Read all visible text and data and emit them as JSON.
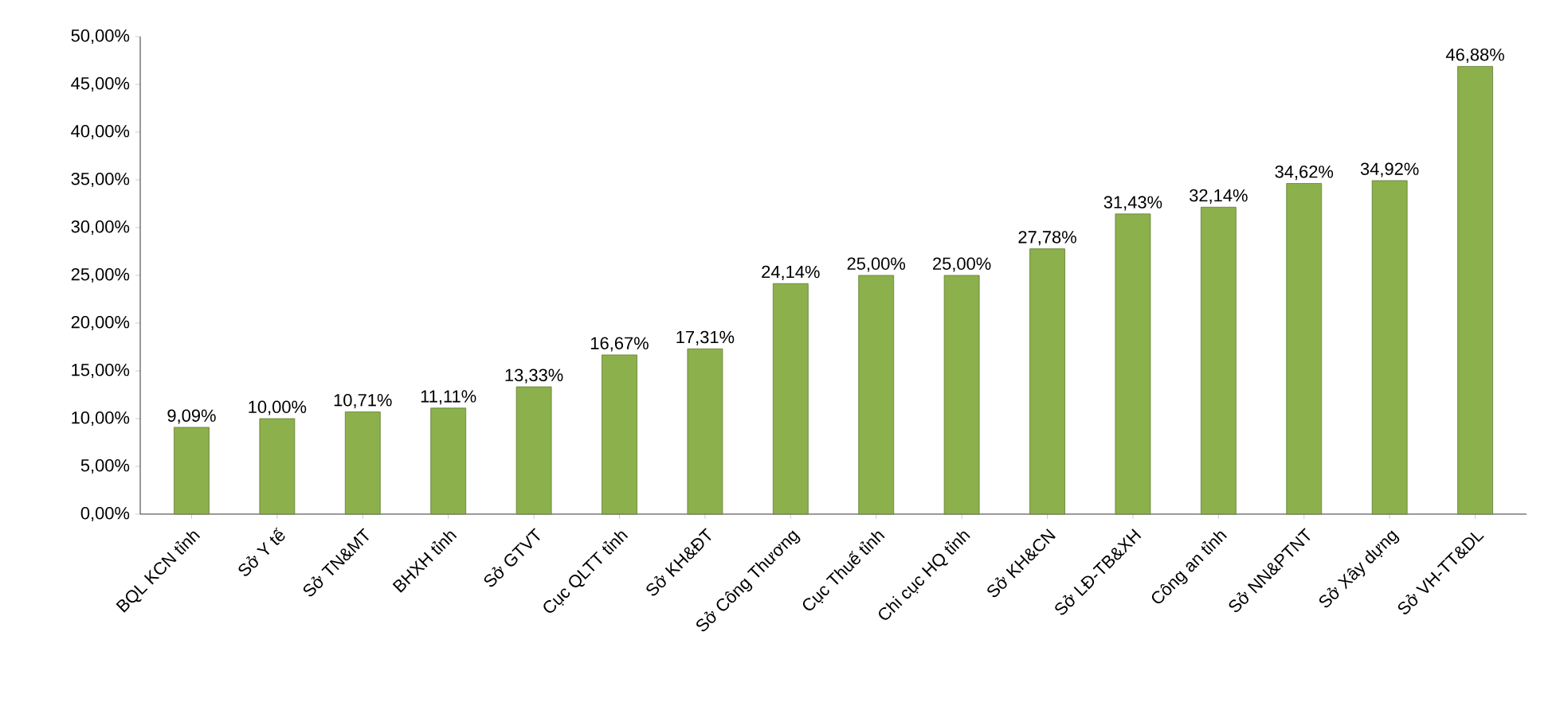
{
  "chart_data": {
    "type": "bar",
    "categories": [
      "BQL KCN tỉnh",
      "Sở Y tế",
      "Sở TN&MT",
      "BHXH tỉnh",
      "Sở GTVT",
      "Cục QLTT tỉnh",
      "Sở KH&ĐT",
      "Sở Công Thương",
      "Cục Thuế tỉnh",
      "Chi cục HQ tỉnh",
      "Sở KH&CN",
      "Sở LĐ-TB&XH",
      "Công an tỉnh",
      "Sở NN&PTNT",
      "Sở Xây dựng",
      "Sở VH-TT&DL"
    ],
    "values": [
      9.09,
      10.0,
      10.71,
      11.11,
      13.33,
      16.67,
      17.31,
      24.14,
      25.0,
      25.0,
      27.78,
      31.43,
      32.14,
      34.62,
      34.92,
      46.88
    ],
    "value_labels": [
      "9,09%",
      "10,00%",
      "10,71%",
      "11,11%",
      "13,33%",
      "16,67%",
      "17,31%",
      "24,14%",
      "25,00%",
      "25,00%",
      "27,78%",
      "31,43%",
      "32,14%",
      "34,62%",
      "34,92%",
      "46,88%"
    ],
    "color": "#8cb04b",
    "ylim": [
      0,
      50
    ],
    "yticks": [
      {
        "value": 0,
        "label": "0,00%"
      },
      {
        "value": 5,
        "label": "5,00%"
      },
      {
        "value": 10,
        "label": "10,00%"
      },
      {
        "value": 15,
        "label": "15,00%"
      },
      {
        "value": 20,
        "label": "20,00%"
      },
      {
        "value": 25,
        "label": "25,00%"
      },
      {
        "value": 30,
        "label": "30,00%"
      },
      {
        "value": 35,
        "label": "35,00%"
      },
      {
        "value": 40,
        "label": "40,00%"
      },
      {
        "value": 45,
        "label": "45,00%"
      },
      {
        "value": 50,
        "label": "50,00%"
      }
    ],
    "grid": false
  }
}
